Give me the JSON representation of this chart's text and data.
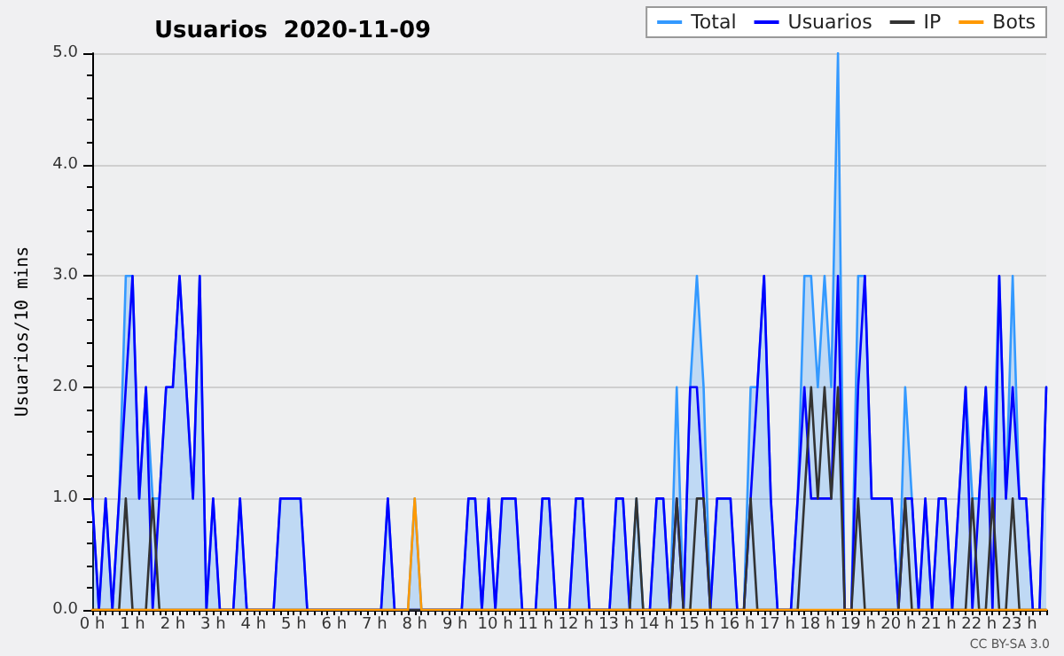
{
  "chart_data": {
    "type": "line",
    "title": "Usuarios  2020-11-09",
    "ylabel": "Usuarios/10 mins",
    "annotations": [
      "CC BY-SA 3.0"
    ],
    "categories": [
      "0 h",
      null,
      null,
      null,
      null,
      null,
      "1 h",
      null,
      null,
      null,
      null,
      null,
      "2 h",
      null,
      null,
      null,
      null,
      null,
      "3 h",
      null,
      null,
      null,
      null,
      null,
      "4 h",
      null,
      null,
      null,
      null,
      null,
      "5 h",
      null,
      null,
      null,
      null,
      null,
      "6 h",
      null,
      null,
      null,
      null,
      null,
      "7 h",
      null,
      null,
      null,
      null,
      null,
      "8 h",
      null,
      null,
      null,
      null,
      null,
      "9 h",
      null,
      null,
      null,
      null,
      null,
      "10 h",
      null,
      null,
      null,
      null,
      null,
      "11 h",
      null,
      null,
      null,
      null,
      null,
      "12 h",
      null,
      null,
      null,
      null,
      null,
      "13 h",
      null,
      null,
      null,
      null,
      null,
      "14 h",
      null,
      null,
      null,
      null,
      null,
      "15 h",
      null,
      null,
      null,
      null,
      null,
      "16 h",
      null,
      null,
      null,
      null,
      null,
      "17 h",
      null,
      null,
      null,
      null,
      null,
      "18 h",
      null,
      null,
      null,
      null,
      null,
      "19 h",
      null,
      null,
      null,
      null,
      null,
      "20 h",
      null,
      null,
      null,
      null,
      null,
      "21 h",
      null,
      null,
      null,
      null,
      null,
      "22 h",
      null,
      null,
      null,
      null,
      null,
      "23 h",
      null,
      null,
      null,
      null
    ],
    "series": [
      {
        "name": "Total",
        "type": "area",
        "color": "#3399ff",
        "values": [
          1,
          0,
          1,
          0,
          1,
          3,
          3,
          1,
          2,
          1,
          1,
          2,
          2,
          3,
          2,
          1,
          3,
          0,
          1,
          0,
          0,
          0,
          1,
          0,
          0,
          0,
          0,
          0,
          1,
          1,
          1,
          1,
          0,
          0,
          0,
          0,
          0,
          0,
          0,
          0,
          0,
          0,
          0,
          0,
          1,
          0,
          0,
          0,
          1,
          0,
          0,
          0,
          0,
          0,
          0,
          0,
          1,
          1,
          0,
          1,
          0,
          1,
          1,
          1,
          0,
          0,
          0,
          1,
          1,
          0,
          0,
          0,
          1,
          1,
          0,
          0,
          0,
          0,
          1,
          1,
          0,
          1,
          0,
          0,
          1,
          1,
          0,
          2,
          0,
          2,
          3,
          2,
          0,
          1,
          1,
          1,
          0,
          0,
          2,
          2,
          3,
          1,
          0,
          0,
          0,
          1,
          3,
          3,
          2,
          3,
          2,
          5,
          0,
          0,
          3,
          3,
          1,
          1,
          1,
          1,
          0,
          2,
          1,
          0,
          1,
          0,
          1,
          1,
          0,
          1,
          2,
          1,
          1,
          2,
          1,
          3,
          1,
          3,
          1,
          1,
          0,
          0,
          2
        ]
      },
      {
        "name": "Usuarios",
        "color": "#0000ff",
        "values": [
          1,
          0,
          1,
          0,
          1,
          2,
          3,
          1,
          2,
          0,
          1,
          2,
          2,
          3,
          2,
          1,
          3,
          0,
          1,
          0,
          0,
          0,
          1,
          0,
          0,
          0,
          0,
          0,
          1,
          1,
          1,
          1,
          0,
          0,
          0,
          0,
          0,
          0,
          0,
          0,
          0,
          0,
          0,
          0,
          1,
          0,
          0,
          0,
          0,
          0,
          0,
          0,
          0,
          0,
          0,
          0,
          1,
          1,
          0,
          1,
          0,
          1,
          1,
          1,
          0,
          0,
          0,
          1,
          1,
          0,
          0,
          0,
          1,
          1,
          0,
          0,
          0,
          0,
          1,
          1,
          0,
          0,
          0,
          0,
          1,
          1,
          0,
          1,
          0,
          2,
          2,
          1,
          0,
          1,
          1,
          1,
          0,
          0,
          1,
          2,
          3,
          1,
          0,
          0,
          0,
          1,
          2,
          1,
          1,
          1,
          1,
          3,
          0,
          0,
          2,
          3,
          1,
          1,
          1,
          1,
          0,
          1,
          1,
          0,
          1,
          0,
          1,
          1,
          0,
          1,
          2,
          0,
          1,
          2,
          0,
          3,
          1,
          2,
          1,
          1,
          0,
          0,
          2
        ]
      },
      {
        "name": "IP",
        "color": "#333333",
        "values": [
          0,
          0,
          0,
          0,
          0,
          1,
          0,
          0,
          0,
          1,
          0,
          0,
          0,
          0,
          0,
          0,
          0,
          0,
          0,
          0,
          0,
          0,
          0,
          0,
          0,
          0,
          0,
          0,
          0,
          0,
          0,
          0,
          0,
          0,
          0,
          0,
          0,
          0,
          0,
          0,
          0,
          0,
          0,
          0,
          0,
          0,
          0,
          0,
          0,
          0,
          0,
          0,
          0,
          0,
          0,
          0,
          0,
          0,
          0,
          0,
          0,
          0,
          0,
          0,
          0,
          0,
          0,
          0,
          0,
          0,
          0,
          0,
          0,
          0,
          0,
          0,
          0,
          0,
          0,
          0,
          0,
          1,
          0,
          0,
          0,
          0,
          0,
          1,
          0,
          0,
          1,
          1,
          0,
          0,
          0,
          0,
          0,
          0,
          1,
          0,
          0,
          0,
          0,
          0,
          0,
          0,
          1,
          2,
          1,
          2,
          1,
          2,
          0,
          0,
          1,
          0,
          0,
          0,
          0,
          0,
          0,
          1,
          0,
          0,
          0,
          0,
          0,
          0,
          0,
          0,
          0,
          1,
          0,
          0,
          1,
          0,
          0,
          1,
          0,
          0,
          0,
          0,
          0
        ]
      },
      {
        "name": "Bots",
        "color": "#ff9900",
        "values": [
          0,
          0,
          0,
          0,
          0,
          0,
          0,
          0,
          0,
          0,
          0,
          0,
          0,
          0,
          0,
          0,
          0,
          0,
          0,
          0,
          0,
          0,
          0,
          0,
          0,
          0,
          0,
          0,
          0,
          0,
          0,
          0,
          0,
          0,
          0,
          0,
          0,
          0,
          0,
          0,
          0,
          0,
          0,
          0,
          0,
          0,
          0,
          0,
          1,
          0,
          0,
          0,
          0,
          0,
          0,
          0,
          0,
          0,
          0,
          0,
          0,
          0,
          0,
          0,
          0,
          0,
          0,
          0,
          0,
          0,
          0,
          0,
          0,
          0,
          0,
          0,
          0,
          0,
          0,
          0,
          0,
          0,
          0,
          0,
          0,
          0,
          0,
          0,
          0,
          0,
          0,
          0,
          0,
          0,
          0,
          0,
          0,
          0,
          0,
          0,
          0,
          0,
          0,
          0,
          0,
          0,
          0,
          0,
          0,
          0,
          0,
          0,
          0,
          0,
          0,
          0,
          0,
          0,
          0,
          0,
          0,
          0,
          0,
          0,
          0,
          0,
          0,
          0,
          0,
          0,
          0,
          0,
          0,
          0,
          0,
          0,
          0,
          0,
          0,
          0,
          0,
          0,
          0
        ]
      }
    ],
    "ylim": [
      0,
      5
    ],
    "yticks": [
      {
        "value": 0,
        "label": "0.0"
      },
      {
        "value": 1,
        "label": "1.0"
      },
      {
        "value": 2,
        "label": "2.0"
      },
      {
        "value": 3,
        "label": "3.0"
      },
      {
        "value": 4,
        "label": "4.0"
      },
      {
        "value": 5,
        "label": "5.0"
      }
    ],
    "grid": "y",
    "legend": "top right",
    "marker": "none",
    "line_style": "solid"
  }
}
